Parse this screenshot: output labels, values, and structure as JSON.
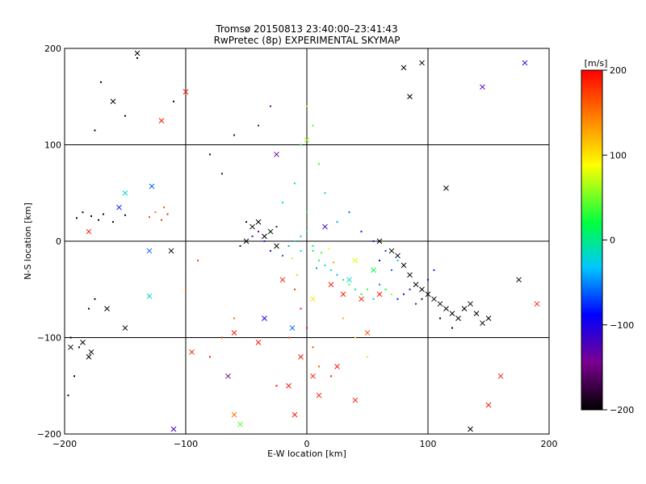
{
  "chart_data": {
    "type": "scatter",
    "title": "Tromsø 20150813 23:40:00–23:41:43",
    "subtitle": "RwPretec (8p) EXPERIMENTAL SKYMAP",
    "xlabel": "E-W location [km]",
    "ylabel": "N-S location [km]",
    "xlim": [
      -200,
      200
    ],
    "ylim": [
      -200,
      200
    ],
    "x_ticks": [
      "−200",
      "−100",
      "0",
      "100",
      "200"
    ],
    "y_ticks": [
      "200",
      "100",
      "0",
      "−100",
      "−200"
    ],
    "x_tick_values": [
      -200,
      -100,
      0,
      100,
      200
    ],
    "y_tick_values": [
      200,
      100,
      0,
      -100,
      -200
    ],
    "grid": true,
    "colorbar": {
      "label": "[m/s]",
      "range": [
        -200,
        200
      ],
      "ticks": [
        "200",
        "100",
        "0",
        "−100",
        "−200"
      ],
      "tick_values": [
        200,
        100,
        0,
        -100,
        -200
      ],
      "colormap": [
        "#000000",
        "#7a0090",
        "#0000ff",
        "#00c8ff",
        "#00ff40",
        "#ffff00",
        "#ff8000",
        "#ff0000"
      ]
    },
    "series": [
      {
        "marker": "dot",
        "points": [
          [
            -185,
            30,
            -200
          ],
          [
            -178,
            26,
            -200
          ],
          [
            -172,
            22,
            -200
          ],
          [
            -168,
            28,
            -200
          ],
          [
            -190,
            24,
            -200
          ],
          [
            -160,
            20,
            -200
          ],
          [
            -150,
            27,
            -200
          ],
          [
            -195,
            -100,
            -200
          ],
          [
            -188,
            -110,
            -200
          ],
          [
            -192,
            -140,
            -200
          ],
          [
            -180,
            -70,
            -200
          ],
          [
            -175,
            -60,
            -200
          ],
          [
            -197,
            -160,
            -200
          ],
          [
            -125,
            30,
            150
          ],
          [
            -118,
            35,
            160
          ],
          [
            -115,
            28,
            190
          ],
          [
            -120,
            22,
            180
          ],
          [
            -130,
            25,
            170
          ],
          [
            -150,
            130,
            -200
          ],
          [
            -140,
            190,
            -200
          ],
          [
            -170,
            165,
            -200
          ],
          [
            -175,
            115,
            -200
          ],
          [
            -110,
            145,
            -200
          ],
          [
            -50,
            20,
            -180
          ],
          [
            -40,
            10,
            -150
          ],
          [
            -35,
            0,
            -130
          ],
          [
            -30,
            -10,
            -120
          ],
          [
            -25,
            15,
            -160
          ],
          [
            -45,
            5,
            -140
          ],
          [
            -55,
            -5,
            -170
          ],
          [
            -20,
            -15,
            -60
          ],
          [
            -15,
            -5,
            -40
          ],
          [
            -10,
            0,
            -20
          ],
          [
            -5,
            5,
            0
          ],
          [
            0,
            10,
            10
          ],
          [
            5,
            -10,
            20
          ],
          [
            10,
            -20,
            30
          ],
          [
            15,
            -25,
            0
          ],
          [
            20,
            -30,
            -20
          ],
          [
            25,
            -35,
            -40
          ],
          [
            30,
            -40,
            20
          ],
          [
            35,
            -45,
            40
          ],
          [
            40,
            -50,
            -10
          ],
          [
            45,
            -55,
            10
          ],
          [
            50,
            -50,
            30
          ],
          [
            55,
            -60,
            -30
          ],
          [
            60,
            -45,
            -50
          ],
          [
            65,
            -50,
            20
          ],
          [
            70,
            -55,
            60
          ],
          [
            75,
            -60,
            -80
          ],
          [
            80,
            -55,
            -100
          ],
          [
            85,
            -50,
            -120
          ],
          [
            90,
            -65,
            -150
          ],
          [
            95,
            -60,
            -180
          ],
          [
            -10,
            -50,
            180
          ],
          [
            -5,
            -70,
            190
          ],
          [
            0,
            -90,
            200
          ],
          [
            5,
            -110,
            170
          ],
          [
            10,
            -130,
            160
          ],
          [
            -15,
            -100,
            180
          ],
          [
            20,
            -140,
            190
          ],
          [
            -25,
            -150,
            200
          ],
          [
            0,
            140,
            60
          ],
          [
            5,
            120,
            40
          ],
          [
            -5,
            100,
            20
          ],
          [
            10,
            80,
            30
          ],
          [
            -10,
            60,
            10
          ],
          [
            15,
            50,
            -10
          ],
          [
            -20,
            40,
            0
          ],
          [
            0,
            30,
            20
          ],
          [
            -60,
            -80,
            150
          ],
          [
            -70,
            -100,
            180
          ],
          [
            -80,
            -120,
            190
          ],
          [
            -90,
            -20,
            170
          ],
          [
            -100,
            -50,
            160
          ],
          [
            30,
            -80,
            120
          ],
          [
            40,
            -100,
            110
          ],
          [
            50,
            -120,
            100
          ],
          [
            60,
            -20,
            -90
          ],
          [
            70,
            -30,
            -60
          ],
          [
            -30,
            140,
            -140
          ],
          [
            -40,
            120,
            -160
          ],
          [
            -60,
            110,
            -170
          ],
          [
            -80,
            90,
            -190
          ],
          [
            -70,
            70,
            -180
          ],
          [
            110,
            -80,
            -200
          ],
          [
            120,
            -90,
            -200
          ],
          [
            130,
            -70,
            -200
          ],
          [
            100,
            -40,
            -100
          ],
          [
            105,
            -30,
            -80
          ],
          [
            25,
            20,
            -40
          ],
          [
            35,
            30,
            -60
          ],
          [
            45,
            10,
            -80
          ],
          [
            55,
            0,
            -100
          ],
          [
            65,
            -10,
            -70
          ],
          [
            75,
            -20,
            -30
          ],
          [
            -5,
            -10,
            -30
          ],
          [
            5,
            -5,
            0
          ],
          [
            12,
            -12,
            40
          ],
          [
            -12,
            -18,
            70
          ],
          [
            18,
            -8,
            90
          ],
          [
            8,
            -28,
            -50
          ],
          [
            -8,
            -35,
            110
          ],
          [
            22,
            -22,
            130
          ]
        ]
      },
      {
        "marker": "x",
        "points": [
          [
            -140,
            195,
            -200
          ],
          [
            -160,
            145,
            -200
          ],
          [
            -165,
            -70,
            -200
          ],
          [
            -185,
            -105,
            -200
          ],
          [
            -178,
            -115,
            -200
          ],
          [
            -180,
            -120,
            -200
          ],
          [
            -120,
            125,
            190
          ],
          [
            -100,
            155,
            190
          ],
          [
            -180,
            10,
            190
          ],
          [
            -195,
            -110,
            -200
          ],
          [
            -128,
            57,
            -60
          ],
          [
            -150,
            50,
            -20
          ],
          [
            -155,
            35,
            -80
          ],
          [
            -130,
            -10,
            -60
          ],
          [
            -112,
            -10,
            -200
          ],
          [
            -130,
            -57,
            -20
          ],
          [
            -150,
            -90,
            -200
          ],
          [
            -40,
            20,
            -200
          ],
          [
            -45,
            15,
            -200
          ],
          [
            -35,
            5,
            -200
          ],
          [
            -30,
            10,
            -200
          ],
          [
            -50,
            0,
            -200
          ],
          [
            -25,
            -5,
            -200
          ],
          [
            60,
            0,
            -200
          ],
          [
            70,
            -10,
            -200
          ],
          [
            75,
            -15,
            -200
          ],
          [
            80,
            -25,
            -200
          ],
          [
            85,
            -35,
            -200
          ],
          [
            90,
            -45,
            -200
          ],
          [
            95,
            -50,
            -200
          ],
          [
            100,
            -55,
            -200
          ],
          [
            105,
            -60,
            -200
          ],
          [
            110,
            -65,
            -200
          ],
          [
            115,
            -70,
            -200
          ],
          [
            120,
            -75,
            -200
          ],
          [
            125,
            -80,
            -200
          ],
          [
            130,
            -70,
            -200
          ],
          [
            135,
            -65,
            -200
          ],
          [
            140,
            -75,
            -200
          ],
          [
            145,
            -85,
            -200
          ],
          [
            150,
            -80,
            -200
          ],
          [
            -5,
            -120,
            190
          ],
          [
            5,
            -140,
            190
          ],
          [
            10,
            -160,
            190
          ],
          [
            -15,
            -150,
            190
          ],
          [
            25,
            -130,
            190
          ],
          [
            40,
            -165,
            190
          ],
          [
            -10,
            -180,
            190
          ],
          [
            30,
            -55,
            190
          ],
          [
            20,
            -45,
            190
          ],
          [
            45,
            -60,
            190
          ],
          [
            60,
            -55,
            190
          ],
          [
            -20,
            -40,
            190
          ],
          [
            135,
            -195,
            -200
          ],
          [
            115,
            55,
            -200
          ],
          [
            85,
            150,
            -200
          ],
          [
            80,
            180,
            -200
          ],
          [
            95,
            185,
            -200
          ],
          [
            150,
            -170,
            190
          ],
          [
            160,
            -140,
            190
          ],
          [
            190,
            -65,
            190
          ],
          [
            175,
            -40,
            -200
          ],
          [
            -40,
            -105,
            190
          ],
          [
            -60,
            -95,
            190
          ],
          [
            -95,
            -115,
            190
          ],
          [
            -60,
            -180,
            150
          ],
          [
            -55,
            -190,
            40
          ],
          [
            -35,
            -80,
            -100
          ],
          [
            -12,
            -90,
            -60
          ],
          [
            0,
            105,
            60
          ],
          [
            -25,
            90,
            -140
          ],
          [
            180,
            185,
            -100
          ],
          [
            145,
            160,
            -120
          ],
          [
            -110,
            -195,
            -120
          ],
          [
            -65,
            -140,
            -150
          ],
          [
            40,
            -20,
            80
          ],
          [
            55,
            -30,
            20
          ],
          [
            35,
            -40,
            -20
          ],
          [
            15,
            15,
            -120
          ],
          [
            5,
            -60,
            100
          ],
          [
            50,
            -95,
            160
          ]
        ]
      }
    ]
  }
}
